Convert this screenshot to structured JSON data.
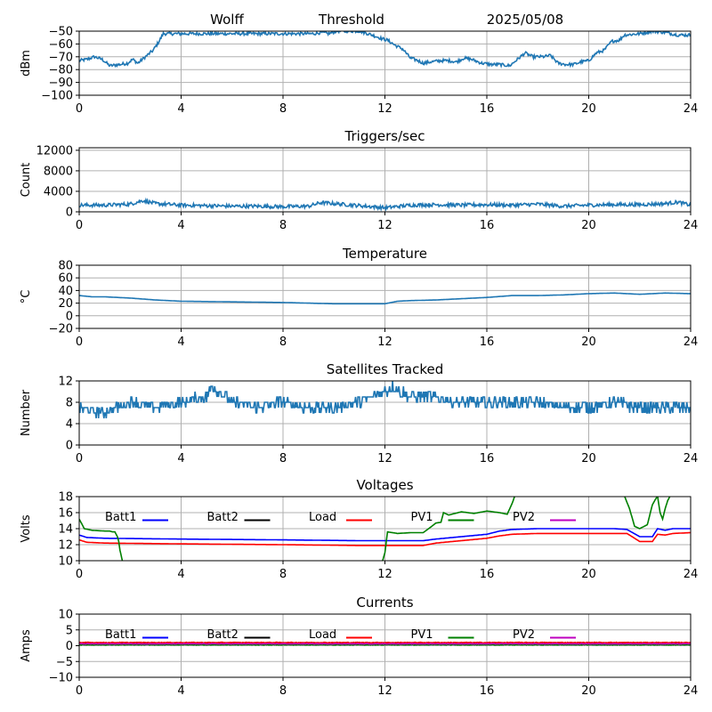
{
  "header": {
    "station": "Wolff",
    "mode": "Threshold",
    "date": "2025/05/08"
  },
  "colors": {
    "series": "#1f77b4",
    "grid": "#b0b0b0",
    "batt1": "#0000ff",
    "batt2": "#000000",
    "load": "#ff0000",
    "pv1": "#008000",
    "pv2": "#bf00bf"
  },
  "chart_data": [
    {
      "type": "line",
      "title": "",
      "xlabel": "",
      "ylabel": "dBm",
      "xlim": [
        0,
        24
      ],
      "ylim": [
        -100,
        -50
      ],
      "xticks": [
        0,
        4,
        8,
        12,
        16,
        20,
        24
      ],
      "yticks": [
        -100,
        -90,
        -80,
        -70,
        -60,
        -50
      ],
      "grid": true,
      "series": [
        {
          "color": "#1f77b4",
          "noise": 1.2,
          "x": [
            0,
            0.3,
            0.6,
            0.9,
            1.2,
            1.6,
            1.9,
            2.1,
            2.3,
            2.6,
            2.9,
            3.1,
            3.3,
            9.2,
            9.5,
            9.8,
            10.1,
            11.0,
            11.5,
            11.9,
            12.1,
            12.4,
            12.7,
            13.0,
            13.3,
            13.5,
            13.8,
            14.2,
            14.5,
            14.8,
            15.1,
            15.4,
            15.8,
            16.2,
            16.5,
            16.9,
            17.2,
            17.5,
            17.8,
            18.2,
            18.5,
            18.8,
            19.1,
            19.4,
            19.7,
            20.0,
            20.3,
            20.6,
            20.9,
            21.2,
            21.4,
            22.0,
            22.5,
            23.0,
            23.5,
            24.0
          ],
          "y": [
            -73,
            -72,
            -70,
            -72,
            -77,
            -76,
            -75,
            -72,
            -75,
            -70,
            -65,
            -59,
            -52,
            -52,
            -51,
            -52,
            -50,
            -50,
            -53,
            -56,
            -57,
            -61,
            -64,
            -71,
            -73,
            -75,
            -74,
            -73,
            -73,
            -74,
            -71,
            -72,
            -75,
            -76,
            -76,
            -77,
            -72,
            -67,
            -70,
            -70,
            -69,
            -75,
            -76,
            -76,
            -74,
            -73,
            -67,
            -65,
            -58,
            -57,
            -53,
            -52,
            -50,
            -51,
            -53,
            -53
          ]
        }
      ]
    },
    {
      "type": "line",
      "title": "Triggers/sec",
      "xlabel": "",
      "ylabel": "Count",
      "xlim": [
        0,
        24
      ],
      "ylim": [
        0,
        12500
      ],
      "xticks": [
        0,
        4,
        8,
        12,
        16,
        20,
        24
      ],
      "yticks": [
        0,
        4000,
        8000,
        12000
      ],
      "grid": true,
      "series": [
        {
          "color": "#1f77b4",
          "noise": 350,
          "x": [
            0,
            1,
            2,
            2.5,
            3,
            4,
            5,
            6,
            7,
            8,
            9,
            9.5,
            10,
            11,
            12,
            13,
            14,
            15,
            16,
            17,
            18,
            19,
            20,
            21,
            22,
            23,
            23.5,
            24
          ],
          "y": [
            1300,
            1300,
            1500,
            2200,
            1600,
            1300,
            1200,
            1100,
            1100,
            1000,
            1100,
            1800,
            1600,
            1200,
            800,
            1300,
            1400,
            1300,
            1400,
            1300,
            1500,
            1100,
            1300,
            1400,
            1400,
            1600,
            1900,
            1300
          ]
        }
      ]
    },
    {
      "type": "line",
      "title": "Temperature",
      "xlabel": "",
      "ylabel": "°C",
      "xlim": [
        0,
        24
      ],
      "ylim": [
        -20,
        80
      ],
      "xticks": [
        0,
        4,
        8,
        12,
        16,
        20,
        24
      ],
      "yticks": [
        -20,
        0,
        20,
        40,
        60,
        80
      ],
      "grid": true,
      "series": [
        {
          "color": "#1f77b4",
          "noise": 0,
          "x": [
            0,
            0.5,
            1,
            2,
            3,
            4,
            6,
            8,
            9,
            10,
            11,
            12,
            12.5,
            13,
            14,
            15,
            16,
            17,
            18,
            19,
            20,
            21,
            22,
            23,
            24
          ],
          "y": [
            32,
            30,
            30,
            28,
            25,
            23,
            22,
            21,
            20,
            19,
            19,
            19,
            23,
            24,
            25,
            27,
            29,
            32,
            32,
            33,
            35,
            36,
            34,
            36,
            35
          ]
        }
      ]
    },
    {
      "type": "line",
      "title": "Satellites Tracked",
      "xlabel": "",
      "ylabel": "Number",
      "xlim": [
        0,
        24
      ],
      "ylim": [
        0,
        12
      ],
      "xticks": [
        0,
        4,
        8,
        12,
        16,
        20,
        24
      ],
      "yticks": [
        0,
        4,
        8,
        12
      ],
      "grid": true,
      "series": [
        {
          "color": "#1f77b4",
          "noise": 1,
          "integer": true,
          "x": [
            0,
            1,
            2,
            3,
            4,
            5,
            5.2,
            6,
            7,
            8,
            9,
            10,
            11,
            12,
            12.3,
            13,
            14,
            15,
            16,
            17,
            18,
            19,
            20,
            21,
            22,
            23,
            24
          ],
          "y": [
            7,
            6,
            8,
            7,
            8,
            9,
            11,
            8,
            7,
            8,
            7,
            7,
            8,
            10,
            11,
            9,
            9,
            8,
            8,
            8,
            8,
            7,
            7,
            8,
            7,
            7,
            7
          ]
        }
      ]
    },
    {
      "type": "line",
      "title": "Voltages",
      "xlabel": "",
      "ylabel": "Volts",
      "xlim": [
        0,
        24
      ],
      "ylim": [
        10,
        18
      ],
      "xticks": [
        0,
        4,
        8,
        12,
        16,
        20,
        24
      ],
      "yticks": [
        10,
        12,
        14,
        16,
        18
      ],
      "grid": true,
      "legend": "top",
      "series": [
        {
          "name": "Batt1",
          "color": "#0000ff",
          "noise": 0,
          "x": [
            0,
            0.3,
            1,
            4,
            8,
            11,
            12,
            13.5,
            14,
            15,
            16,
            16.5,
            17,
            18,
            19,
            20,
            21,
            21.5,
            22,
            22.5,
            22.7,
            23,
            23.3,
            24
          ],
          "y": [
            13.2,
            12.9,
            12.8,
            12.7,
            12.6,
            12.5,
            12.5,
            12.5,
            12.7,
            13.0,
            13.3,
            13.7,
            13.9,
            14.0,
            14.0,
            14.0,
            14.0,
            13.9,
            13.0,
            13.0,
            14.0,
            13.8,
            14.0,
            14.0
          ]
        },
        {
          "name": "Batt2",
          "color": "#000000",
          "noise": 0,
          "x": [],
          "y": []
        },
        {
          "name": "Load",
          "color": "#ff0000",
          "noise": 0,
          "x": [
            0,
            0.3,
            1,
            4,
            8,
            11,
            12,
            13.5,
            14,
            15,
            16,
            16.5,
            17,
            18,
            19,
            20,
            21,
            21.5,
            22,
            22.5,
            22.7,
            23,
            23.3,
            24
          ],
          "y": [
            12.6,
            12.3,
            12.2,
            12.1,
            12.0,
            11.9,
            11.9,
            11.9,
            12.2,
            12.5,
            12.8,
            13.1,
            13.3,
            13.4,
            13.4,
            13.4,
            13.4,
            13.4,
            12.4,
            12.4,
            13.3,
            13.2,
            13.4,
            13.5
          ]
        },
        {
          "name": "PV1",
          "color": "#008000",
          "noise": 0,
          "x": [
            0,
            0.2,
            0.5,
            1,
            1.2,
            1.3,
            1.4,
            1.5,
            1.55,
            1.6,
            1.7,
            11.9,
            12.0,
            12.1,
            12.5,
            13.0,
            13.5,
            13.8,
            14.0,
            14.2,
            14.3,
            14.5,
            15.0,
            15.5,
            16.0,
            16.5,
            16.8,
            17.0,
            17.1,
            21.4,
            21.6,
            21.8,
            22.0,
            22.3,
            22.5,
            22.7,
            22.8,
            22.9,
            23.0,
            23.1,
            23.2
          ],
          "y": [
            15.2,
            14.0,
            13.8,
            13.7,
            13.7,
            13.6,
            13.6,
            13.0,
            12.4,
            11.3,
            9.9,
            9.9,
            11.0,
            13.6,
            13.4,
            13.5,
            13.5,
            14.2,
            14.7,
            14.8,
            16.0,
            15.7,
            16.1,
            15.9,
            16.2,
            16.0,
            15.8,
            17.2,
            18.1,
            18.1,
            16.5,
            14.3,
            14.0,
            14.5,
            17.0,
            18.1,
            16.0,
            15.2,
            16.5,
            17.5,
            18.1
          ]
        },
        {
          "name": "PV2",
          "color": "#bf00bf",
          "noise": 0,
          "x": [],
          "y": []
        }
      ]
    },
    {
      "type": "line",
      "title": "Currents",
      "xlabel": "",
      "ylabel": "Amps",
      "xlim": [
        0,
        24
      ],
      "ylim": [
        -10,
        10
      ],
      "xticks": [
        0,
        4,
        8,
        12,
        16,
        20,
        24
      ],
      "yticks": [
        -10,
        -5,
        0,
        5,
        10
      ],
      "grid": true,
      "legend": "top",
      "series": [
        {
          "name": "Batt1",
          "color": "#0000ff",
          "noise": 0.1,
          "x": [
            0,
            24
          ],
          "y": [
            0.4,
            0.4
          ]
        },
        {
          "name": "Batt2",
          "color": "#000000",
          "noise": 0.1,
          "x": [
            0,
            24
          ],
          "y": [
            0.7,
            0.7
          ]
        },
        {
          "name": "Load",
          "color": "#ff0000",
          "noise": 0.1,
          "x": [
            0,
            24
          ],
          "y": [
            1.0,
            1.0
          ]
        },
        {
          "name": "PV1",
          "color": "#008000",
          "noise": 0.1,
          "x": [
            0,
            24
          ],
          "y": [
            0.3,
            0.3
          ]
        },
        {
          "name": "PV2",
          "color": "#bf00bf",
          "noise": 0.1,
          "x": [
            0,
            24
          ],
          "y": [
            0.6,
            0.6
          ]
        }
      ]
    }
  ]
}
